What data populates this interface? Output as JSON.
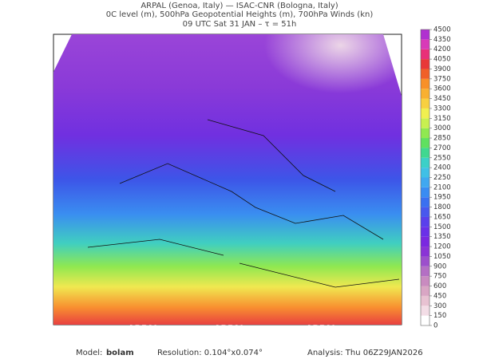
{
  "header": {
    "lines": [
      "ARPAL (Genoa, Italy)  —  ISAC-CNR (Bologna, Italy)",
      "0C level (m), 500hPa Geopotential Heights (m), 700hPa Winds (kn)",
      "09 UTC Sat 31 JAN  –  τ = 51h"
    ]
  },
  "map": {
    "watermark": "ARPAL"
  },
  "colorbar": {
    "ticks": [
      0,
      150,
      300,
      450,
      600,
      750,
      900,
      1050,
      1200,
      1350,
      1500,
      1650,
      1800,
      1950,
      2100,
      2250,
      2400,
      2550,
      2700,
      2850,
      3000,
      3150,
      3300,
      3450,
      3600,
      3750,
      3900,
      4050,
      4200,
      4350,
      4500
    ],
    "colors": [
      "#ffffff",
      "#f3dde6",
      "#e8c2d2",
      "#d9a6c4",
      "#c98bc0",
      "#b46fc4",
      "#9c4fcc",
      "#8a33d6",
      "#7a28e0",
      "#6a30e8",
      "#5a40ec",
      "#4858ee",
      "#3a70f0",
      "#3a8cf2",
      "#40a8f0",
      "#40c0e6",
      "#3cd0c8",
      "#40d890",
      "#60e060",
      "#90e850",
      "#c8f050",
      "#f0f050",
      "#f8d040",
      "#f8b030",
      "#f89028",
      "#f06028",
      "#e83838",
      "#e83078",
      "#d83ab8",
      "#b030d0"
    ]
  },
  "footer": {
    "model_label": "Model:",
    "model": "bolam",
    "resolution": "Resolution: 0.104°x0.074°",
    "analysis": "Analysis: Thu 06Z29JAN2026"
  }
}
